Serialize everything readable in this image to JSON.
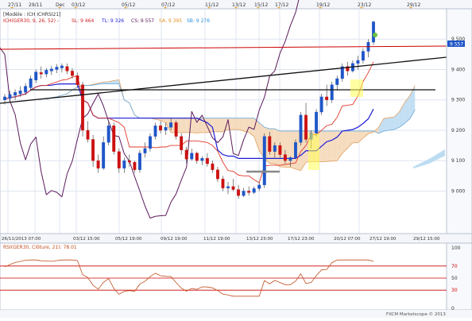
{
  "top_dates": [
    "27/11",
    "Dec",
    "03/12",
    "05/12",
    "07/12",
    "11/12",
    "13/12",
    "15/12",
    "17/12",
    "19/12",
    "23/12",
    "29/12"
  ],
  "top_date_small": "29/11",
  "legend": {
    "line1": "[Modèle : ICH ICHRSI21]",
    "line2_prefix": "ICH(GER30, 9, 26, 52) - ",
    "sl": "SL: 9 464",
    "tl": "TL: 9 326",
    "cs": "CS: 9 557",
    "sa": "SA: 9 395",
    "sb": "SB: 9 276"
  },
  "price_marker": "9 557",
  "price_axis": [
    "9 500",
    "9 400",
    "9 300",
    "9 200",
    "9 100",
    "9 000"
  ],
  "bottom_dates": [
    "26/11/2013 07:00",
    "03/12 15:00",
    "05/12 19:00",
    "09/12 19:00",
    "11/12 19:00",
    "13/12 23:00",
    "17/12 23:00",
    "20/12 07:00",
    "27/12 19:00",
    "29/12 15:00"
  ],
  "rsi": {
    "label": "RSI(GER30, Clôture, 21): 78.01",
    "axis": [
      "100",
      "70",
      "50",
      "30",
      "0"
    ]
  },
  "watermark": "FXCM Marketscope © 2013",
  "colors": {
    "background": "#ffffff",
    "grid": "#dfe6f0",
    "bull": "#1f56c8",
    "bear": "#cc1111",
    "kijun": "#1c1cd6",
    "tenkan": "#e23b2b",
    "chikou": "#5b1a5b",
    "cloud_bull": "#bcdcf2",
    "cloud_bear": "#f5d8b8",
    "rsi_line": "#c05020",
    "rsi_level": "#cc0000",
    "highlight": "#ffff55"
  },
  "chart_data": {
    "type": "candlestick",
    "instrument": "GER30",
    "y_range_price": [
      8860,
      9600
    ],
    "candles": [
      {
        "o": 9300,
        "h": 9320,
        "l": 9285,
        "c": 9310
      },
      {
        "o": 9305,
        "h": 9330,
        "l": 9295,
        "c": 9318
      },
      {
        "o": 9315,
        "h": 9335,
        "l": 9300,
        "c": 9325
      },
      {
        "o": 9320,
        "h": 9345,
        "l": 9310,
        "c": 9330
      },
      {
        "o": 9325,
        "h": 9355,
        "l": 9315,
        "c": 9345
      },
      {
        "o": 9340,
        "h": 9380,
        "l": 9330,
        "c": 9370
      },
      {
        "o": 9365,
        "h": 9400,
        "l": 9355,
        "c": 9392
      },
      {
        "o": 9390,
        "h": 9410,
        "l": 9370,
        "c": 9385
      },
      {
        "o": 9385,
        "h": 9405,
        "l": 9375,
        "c": 9398
      },
      {
        "o": 9395,
        "h": 9412,
        "l": 9382,
        "c": 9402
      },
      {
        "o": 9400,
        "h": 9418,
        "l": 9388,
        "c": 9408
      },
      {
        "o": 9405,
        "h": 9420,
        "l": 9390,
        "c": 9412
      },
      {
        "o": 9410,
        "h": 9420,
        "l": 9385,
        "c": 9395
      },
      {
        "o": 9395,
        "h": 9405,
        "l": 9370,
        "c": 9380
      },
      {
        "o": 9380,
        "h": 9390,
        "l": 9340,
        "c": 9350
      },
      {
        "o": 9350,
        "h": 9360,
        "l": 9180,
        "c": 9200
      },
      {
        "o": 9200,
        "h": 9230,
        "l": 9160,
        "c": 9170
      },
      {
        "o": 9170,
        "h": 9185,
        "l": 9080,
        "c": 9100
      },
      {
        "o": 9100,
        "h": 9120,
        "l": 9060,
        "c": 9075
      },
      {
        "o": 9075,
        "h": 9180,
        "l": 9070,
        "c": 9160
      },
      {
        "o": 9160,
        "h": 9230,
        "l": 9150,
        "c": 9215
      },
      {
        "o": 9215,
        "h": 9225,
        "l": 9120,
        "c": 9130
      },
      {
        "o": 9130,
        "h": 9140,
        "l": 9060,
        "c": 9075
      },
      {
        "o": 9075,
        "h": 9110,
        "l": 9060,
        "c": 9100
      },
      {
        "o": 9100,
        "h": 9120,
        "l": 9080,
        "c": 9095
      },
      {
        "o": 9095,
        "h": 9100,
        "l": 9060,
        "c": 9070
      },
      {
        "o": 9070,
        "h": 9135,
        "l": 9060,
        "c": 9125
      },
      {
        "o": 9125,
        "h": 9160,
        "l": 9110,
        "c": 9140
      },
      {
        "o": 9140,
        "h": 9190,
        "l": 9130,
        "c": 9180
      },
      {
        "o": 9180,
        "h": 9225,
        "l": 9170,
        "c": 9215
      },
      {
        "o": 9215,
        "h": 9230,
        "l": 9190,
        "c": 9200
      },
      {
        "o": 9200,
        "h": 9225,
        "l": 9185,
        "c": 9210
      },
      {
        "o": 9210,
        "h": 9240,
        "l": 9200,
        "c": 9225
      },
      {
        "o": 9225,
        "h": 9232,
        "l": 9170,
        "c": 9180
      },
      {
        "o": 9180,
        "h": 9190,
        "l": 9120,
        "c": 9135
      },
      {
        "o": 9135,
        "h": 9145,
        "l": 9090,
        "c": 9105
      },
      {
        "o": 9105,
        "h": 9140,
        "l": 9100,
        "c": 9125
      },
      {
        "o": 9125,
        "h": 9130,
        "l": 9090,
        "c": 9100
      },
      {
        "o": 9100,
        "h": 9115,
        "l": 9085,
        "c": 9108
      },
      {
        "o": 9108,
        "h": 9125,
        "l": 9080,
        "c": 9090
      },
      {
        "o": 9090,
        "h": 9100,
        "l": 9060,
        "c": 9070
      },
      {
        "o": 9070,
        "h": 9080,
        "l": 9030,
        "c": 9040
      },
      {
        "o": 9040,
        "h": 9050,
        "l": 9000,
        "c": 9010
      },
      {
        "o": 9010,
        "h": 9030,
        "l": 8990,
        "c": 9015
      },
      {
        "o": 9015,
        "h": 9040,
        "l": 9000,
        "c": 9005
      },
      {
        "o": 9005,
        "h": 9020,
        "l": 8975,
        "c": 8985
      },
      {
        "o": 8985,
        "h": 9010,
        "l": 8980,
        "c": 9000
      },
      {
        "o": 9000,
        "h": 9015,
        "l": 8985,
        "c": 8995
      },
      {
        "o": 8995,
        "h": 9015,
        "l": 8990,
        "c": 9008
      },
      {
        "o": 9008,
        "h": 9030,
        "l": 9000,
        "c": 9020
      },
      {
        "o": 9020,
        "h": 9190,
        "l": 9010,
        "c": 9180
      },
      {
        "o": 9180,
        "h": 9195,
        "l": 9120,
        "c": 9130
      },
      {
        "o": 9130,
        "h": 9160,
        "l": 9110,
        "c": 9150
      },
      {
        "o": 9150,
        "h": 9160,
        "l": 9110,
        "c": 9120
      },
      {
        "o": 9120,
        "h": 9135,
        "l": 9090,
        "c": 9100
      },
      {
        "o": 9100,
        "h": 9115,
        "l": 9080,
        "c": 9110
      },
      {
        "o": 9110,
        "h": 9170,
        "l": 9105,
        "c": 9160
      },
      {
        "o": 9160,
        "h": 9260,
        "l": 9150,
        "c": 9250
      },
      {
        "o": 9250,
        "h": 9290,
        "l": 9160,
        "c": 9170
      },
      {
        "o": 9170,
        "h": 9200,
        "l": 9140,
        "c": 9190
      },
      {
        "o": 9190,
        "h": 9270,
        "l": 9180,
        "c": 9260
      },
      {
        "o": 9260,
        "h": 9320,
        "l": 9250,
        "c": 9310
      },
      {
        "o": 9310,
        "h": 9350,
        "l": 9280,
        "c": 9300
      },
      {
        "o": 9300,
        "h": 9360,
        "l": 9290,
        "c": 9350
      },
      {
        "o": 9350,
        "h": 9380,
        "l": 9330,
        "c": 9370
      },
      {
        "o": 9370,
        "h": 9420,
        "l": 9360,
        "c": 9410
      },
      {
        "o": 9410,
        "h": 9425,
        "l": 9380,
        "c": 9395
      },
      {
        "o": 9395,
        "h": 9430,
        "l": 9390,
        "c": 9420
      },
      {
        "o": 9420,
        "h": 9445,
        "l": 9400,
        "c": 9430
      },
      {
        "o": 9430,
        "h": 9470,
        "l": 9420,
        "c": 9460
      },
      {
        "o": 9460,
        "h": 9500,
        "l": 9440,
        "c": 9490
      },
      {
        "o": 9490,
        "h": 9560,
        "l": 9480,
        "c": 9557
      }
    ],
    "ichimoku": {
      "period_params": [
        9,
        26,
        52
      ],
      "tenkan_last": 9464,
      "kijun_last": 9326,
      "chikou_last": 9557,
      "senkou_a_last": 9395,
      "senkou_b_last": 9276
    },
    "rsi": {
      "period": 21,
      "last": 78.01,
      "levels": [
        70,
        50,
        30
      ],
      "ylim": [
        0,
        100
      ]
    }
  }
}
